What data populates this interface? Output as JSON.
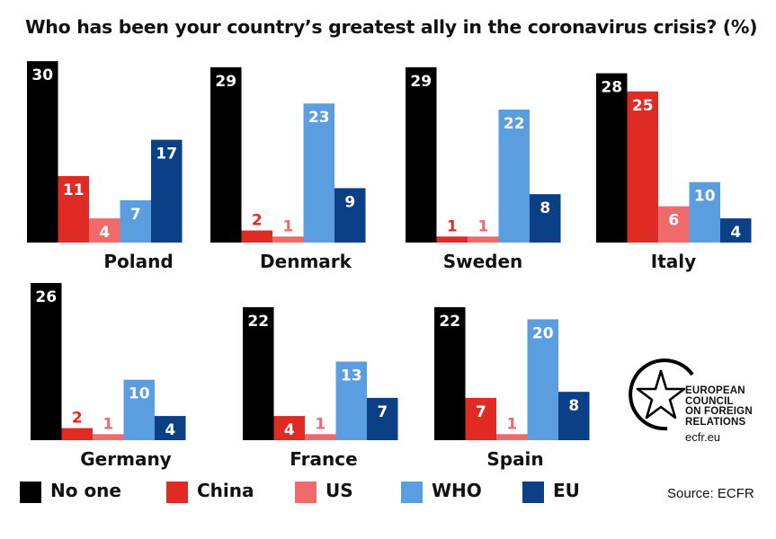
{
  "title": "Who has been your country’s greatest ally in the coronavirus crisis? (%)",
  "source": "Source: ECFR",
  "logo": {
    "lines": [
      "EUROPEAN",
      "COUNCIL",
      "ON FOREIGN",
      "RELATIONS"
    ],
    "url": "ecfr.eu"
  },
  "colors": {
    "no_one": "#000000",
    "china": "#e02a24",
    "us": "#ef6b6b",
    "who": "#5b9ee0",
    "eu": "#0b3f86"
  },
  "legend": [
    {
      "label": "No one",
      "color": "#000000"
    },
    {
      "label": "China",
      "color": "#e02a24"
    },
    {
      "label": "US",
      "color": "#ef6b6b"
    },
    {
      "label": "WHO",
      "color": "#5b9ee0"
    },
    {
      "label": "EU",
      "color": "#0b3f86"
    }
  ],
  "chart_data": [
    {
      "type": "bar",
      "title": "Poland",
      "categories": [
        "No one",
        "China",
        "US",
        "WHO",
        "EU"
      ],
      "values": [
        30,
        11,
        4,
        7,
        17
      ]
    },
    {
      "type": "bar",
      "title": "Denmark",
      "categories": [
        "No one",
        "China",
        "US",
        "WHO",
        "EU"
      ],
      "values": [
        29,
        2,
        1,
        23,
        9
      ]
    },
    {
      "type": "bar",
      "title": "Sweden",
      "categories": [
        "No one",
        "China",
        "US",
        "WHO",
        "EU"
      ],
      "values": [
        29,
        1,
        1,
        22,
        8
      ]
    },
    {
      "type": "bar",
      "title": "Italy",
      "categories": [
        "No one",
        "China",
        "US",
        "WHO",
        "EU"
      ],
      "values": [
        28,
        25,
        6,
        10,
        4
      ]
    },
    {
      "type": "bar",
      "title": "Germany",
      "categories": [
        "No one",
        "China",
        "US",
        "WHO",
        "EU"
      ],
      "values": [
        26,
        2,
        1,
        10,
        4
      ]
    },
    {
      "type": "bar",
      "title": "France",
      "categories": [
        "No one",
        "China",
        "US",
        "WHO",
        "EU"
      ],
      "values": [
        22,
        4,
        1,
        13,
        7
      ]
    },
    {
      "type": "bar",
      "title": "Spain",
      "categories": [
        "No one",
        "China",
        "US",
        "WHO",
        "EU"
      ],
      "values": [
        22,
        7,
        1,
        20,
        8
      ]
    }
  ]
}
